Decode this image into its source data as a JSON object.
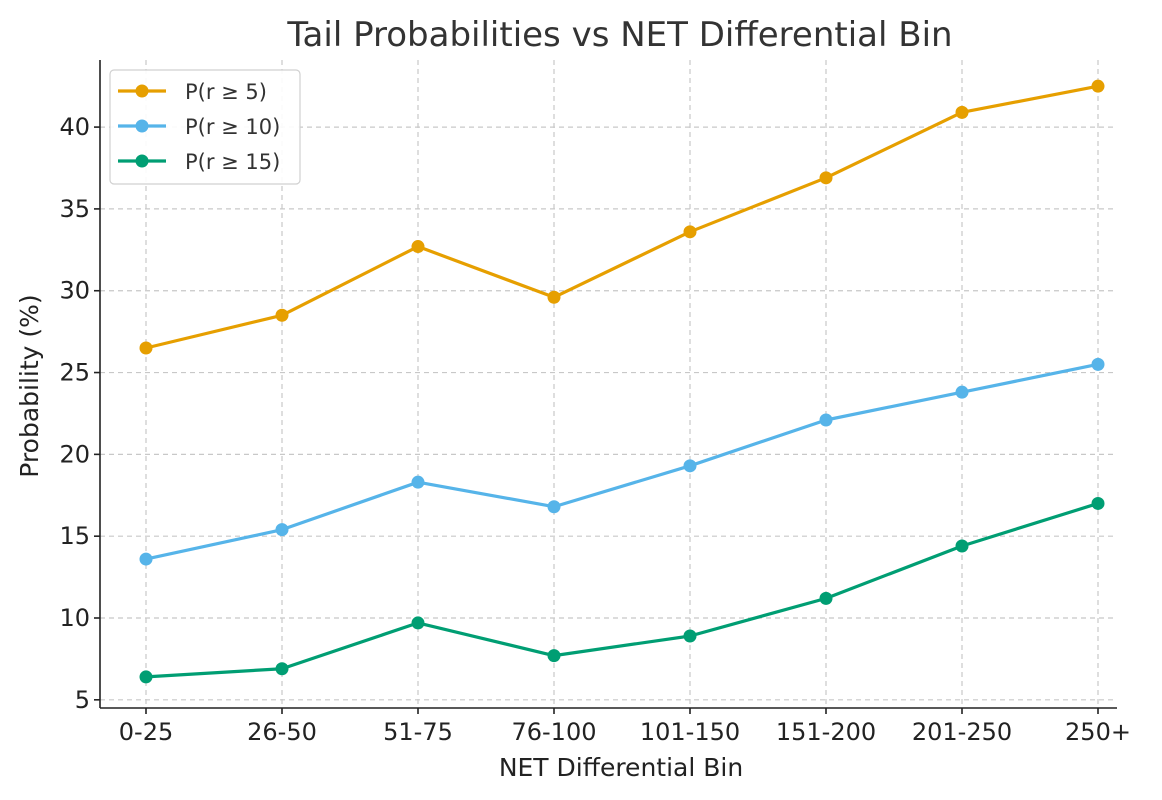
{
  "chart_data": {
    "type": "line",
    "title": "Tail Probabilities vs NET Differential Bin",
    "xlabel": "NET Differential Bin",
    "ylabel": "Probability (%)",
    "categories": [
      "0-25",
      "26-50",
      "51-75",
      "76-100",
      "101-150",
      "151-200",
      "201-250",
      "250+"
    ],
    "yticks": [
      5,
      10,
      15,
      20,
      25,
      30,
      35,
      40
    ],
    "ylim": [
      4.5,
      44.1
    ],
    "grid": true,
    "legend_position": "top-left",
    "series": [
      {
        "name": "P(r ≥ 5)",
        "color": "#E69F00",
        "values": [
          26.5,
          28.5,
          32.7,
          29.6,
          33.6,
          36.9,
          40.9,
          42.5
        ]
      },
      {
        "name": "P(r ≥ 10)",
        "color": "#56B4E9",
        "values": [
          13.6,
          15.4,
          18.3,
          16.8,
          19.3,
          22.1,
          23.8,
          25.5
        ]
      },
      {
        "name": "P(r ≥ 15)",
        "color": "#009E73",
        "values": [
          6.4,
          6.9,
          9.7,
          7.7,
          8.9,
          11.2,
          14.4,
          17.0
        ]
      }
    ]
  }
}
